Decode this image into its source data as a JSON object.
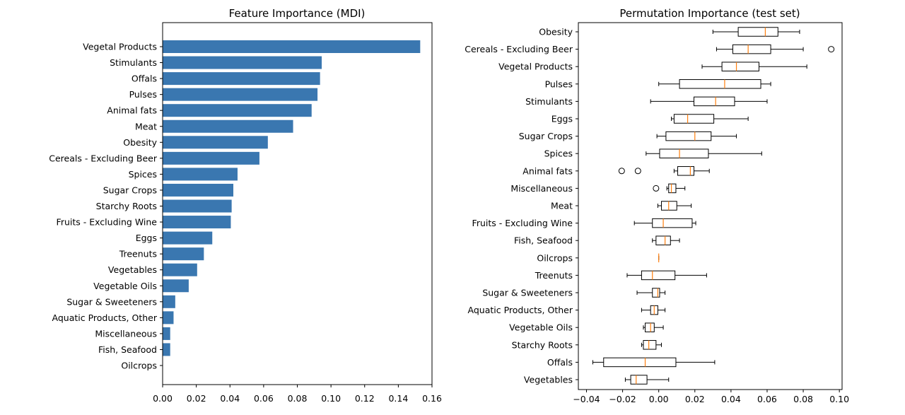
{
  "chart_data": [
    {
      "type": "bar",
      "orientation": "horizontal",
      "title": "Feature Importance (MDI)",
      "xlabel": "",
      "ylabel": "",
      "xlim": [
        0,
        0.16
      ],
      "xticks": [
        0.0,
        0.02,
        0.04,
        0.06,
        0.08,
        0.1,
        0.12,
        0.14,
        0.16
      ],
      "xtick_labels": [
        "0.00",
        "0.02",
        "0.04",
        "0.06",
        "0.08",
        "0.10",
        "0.12",
        "0.14",
        "0.16"
      ],
      "bar_color": "#3a77b0",
      "categories": [
        "Vegetal Products",
        "Stimulants",
        "Offals",
        "Pulses",
        "Animal fats",
        "Meat",
        "Obesity",
        "Cereals - Excluding Beer",
        "Spices",
        "Sugar Crops",
        "Starchy Roots",
        "Fruits - Excluding Wine",
        "Eggs",
        "Treenuts",
        "Vegetables",
        "Vegetable Oils",
        "Sugar & Sweeteners",
        "Aquatic Products, Other",
        "Miscellaneous",
        "Fish, Seafood",
        "Oilcrops"
      ],
      "values": [
        0.153,
        0.0945,
        0.0935,
        0.092,
        0.0885,
        0.0775,
        0.0625,
        0.0575,
        0.0445,
        0.042,
        0.041,
        0.0405,
        0.0295,
        0.0245,
        0.0205,
        0.0155,
        0.0075,
        0.0065,
        0.0045,
        0.0045,
        0.0
      ]
    },
    {
      "type": "boxplot",
      "orientation": "horizontal",
      "title": "Permutation Importance (test set)",
      "xlabel": "",
      "ylabel": "",
      "xlim": [
        -0.0445,
        0.1015
      ],
      "xticks": [
        -0.04,
        -0.02,
        0.0,
        0.02,
        0.04,
        0.06,
        0.08,
        0.1
      ],
      "xtick_labels": [
        "−0.04",
        "−0.02",
        "0.00",
        "0.02",
        "0.04",
        "0.06",
        "0.08",
        "0.10"
      ],
      "median_color": "#ff7f0e",
      "categories": [
        "Obesity",
        "Cereals - Excluding Beer",
        "Vegetal Products",
        "Pulses",
        "Stimulants",
        "Eggs",
        "Sugar Crops",
        "Spices",
        "Animal fats",
        "Miscellaneous",
        "Meat",
        "Fruits - Excluding Wine",
        "Fish, Seafood",
        "Oilcrops",
        "Treenuts",
        "Sugar & Sweeteners",
        "Aquatic Products, Other",
        "Vegetable Oils",
        "Starchy Roots",
        "Offals",
        "Vegetables"
      ],
      "boxes": [
        {
          "whislo": 0.03,
          "q1": 0.044,
          "med": 0.059,
          "q3": 0.066,
          "whishi": 0.078,
          "fliers": []
        },
        {
          "whislo": 0.032,
          "q1": 0.041,
          "med": 0.0495,
          "q3": 0.062,
          "whishi": 0.08,
          "fliers": [
            0.0955
          ]
        },
        {
          "whislo": 0.024,
          "q1": 0.035,
          "med": 0.043,
          "q3": 0.0555,
          "whishi": 0.082,
          "fliers": []
        },
        {
          "whislo": 0.0,
          "q1": 0.0115,
          "med": 0.0365,
          "q3": 0.0565,
          "whishi": 0.062,
          "fliers": []
        },
        {
          "whislo": -0.0045,
          "q1": 0.0195,
          "med": 0.0315,
          "q3": 0.042,
          "whishi": 0.06,
          "fliers": []
        },
        {
          "whislo": 0.007,
          "q1": 0.0085,
          "med": 0.016,
          "q3": 0.0305,
          "whishi": 0.0495,
          "fliers": []
        },
        {
          "whislo": -0.001,
          "q1": 0.004,
          "med": 0.02,
          "q3": 0.029,
          "whishi": 0.043,
          "fliers": []
        },
        {
          "whislo": -0.007,
          "q1": 0.0005,
          "med": 0.0115,
          "q3": 0.0275,
          "whishi": 0.057,
          "fliers": []
        },
        {
          "whislo": 0.0085,
          "q1": 0.0105,
          "med": 0.0175,
          "q3": 0.0195,
          "whishi": 0.028,
          "fliers": [
            -0.0205,
            -0.0115
          ]
        },
        {
          "whislo": 0.0045,
          "q1": 0.0055,
          "med": 0.007,
          "q3": 0.0095,
          "whishi": 0.0145,
          "fliers": [
            -0.0015
          ]
        },
        {
          "whislo": -0.0005,
          "q1": 0.0015,
          "med": 0.0055,
          "q3": 0.01,
          "whishi": 0.018,
          "fliers": []
        },
        {
          "whislo": -0.0135,
          "q1": -0.0035,
          "med": 0.0025,
          "q3": 0.0185,
          "whishi": 0.0205,
          "fliers": []
        },
        {
          "whislo": -0.0035,
          "q1": -0.0015,
          "med": 0.0035,
          "q3": 0.0065,
          "whishi": 0.0115,
          "fliers": []
        },
        {
          "whislo": 0.0,
          "q1": 0.0,
          "med": 0.0,
          "q3": 0.0,
          "whishi": 0.0,
          "fliers": []
        },
        {
          "whislo": -0.0175,
          "q1": -0.0095,
          "med": -0.0035,
          "q3": 0.009,
          "whishi": 0.0265,
          "fliers": []
        },
        {
          "whislo": -0.012,
          "q1": -0.0035,
          "med": -0.0005,
          "q3": 0.0005,
          "whishi": 0.0035,
          "fliers": []
        },
        {
          "whislo": -0.0095,
          "q1": -0.0045,
          "med": -0.0025,
          "q3": -0.0005,
          "whishi": 0.0035,
          "fliers": []
        },
        {
          "whislo": -0.0085,
          "q1": -0.0075,
          "med": -0.0045,
          "q3": -0.0025,
          "whishi": 0.0025,
          "fliers": []
        },
        {
          "whislo": -0.0095,
          "q1": -0.0085,
          "med": -0.0055,
          "q3": -0.0015,
          "whishi": 0.0015,
          "fliers": []
        },
        {
          "whislo": -0.0365,
          "q1": -0.0305,
          "med": -0.0075,
          "q3": 0.0095,
          "whishi": 0.031,
          "fliers": []
        },
        {
          "whislo": -0.0185,
          "q1": -0.0155,
          "med": -0.0125,
          "q3": -0.0065,
          "whishi": 0.0055,
          "fliers": []
        }
      ]
    }
  ]
}
